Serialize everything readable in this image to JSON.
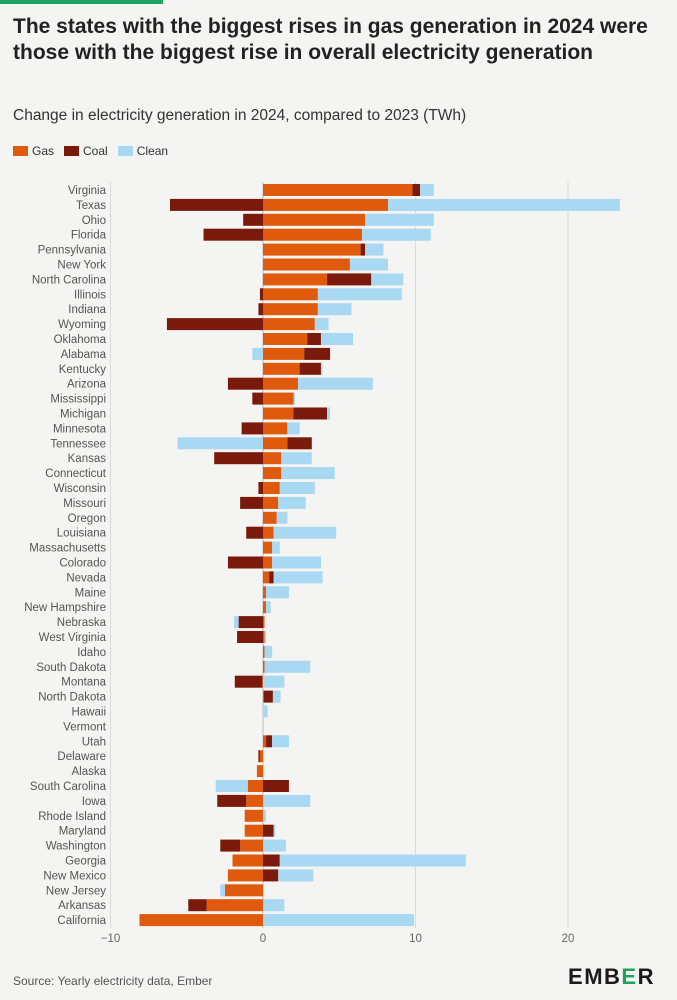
{
  "header": {
    "title": "The states with the biggest rises in gas generation in 2024 were those with the biggest rise in overall electricity generation",
    "subtitle": "Change in electricity generation in 2024, compared to 2023 (TWh)"
  },
  "legend": [
    {
      "label": "Gas",
      "color": "#e05a0d"
    },
    {
      "label": "Coal",
      "color": "#7a1a0c"
    },
    {
      "label": "Clean",
      "color": "#a9d8f2"
    }
  ],
  "footer": {
    "source": "Source: Yearly electricity data, Ember",
    "logo_prefix": "EMB",
    "logo_mark": "E",
    "logo_suffix": "R"
  },
  "chart_data": {
    "type": "bar",
    "orientation": "horizontal",
    "stacked": true,
    "title": "The states with the biggest rises in gas generation in 2024 were those with the biggest rise in overall electricity generation",
    "subtitle": "Change in electricity generation in 2024, compared to 2023 (TWh)",
    "xlabel": "",
    "ylabel": "",
    "xlim": [
      -10,
      25
    ],
    "xticks": [
      -10,
      0,
      10,
      20
    ],
    "xtick_labels": [
      "−10",
      "0",
      "10",
      "20"
    ],
    "grid": "vertical",
    "legend_position": "top-left",
    "colors": {
      "Gas": "#e05a0d",
      "Coal": "#7a1a0c",
      "Clean": "#a9d8f2"
    },
    "categories": [
      "Virginia",
      "Texas",
      "Ohio",
      "Florida",
      "Pennsylvania",
      "New York",
      "North Carolina",
      "Illinois",
      "Indiana",
      "Wyoming",
      "Oklahoma",
      "Alabama",
      "Kentucky",
      "Arizona",
      "Mississippi",
      "Michigan",
      "Minnesota",
      "Tennessee",
      "Kansas",
      "Connecticut",
      "Wisconsin",
      "Missouri",
      "Oregon",
      "Louisiana",
      "Massachusetts",
      "Colorado",
      "Nevada",
      "Maine",
      "New Hampshire",
      "Nebraska",
      "West Virginia",
      "Idaho",
      "South Dakota",
      "Montana",
      "North Dakota",
      "Hawaii",
      "Vermont",
      "Utah",
      "Delaware",
      "Alaska",
      "South Carolina",
      "Iowa",
      "Rhode Island",
      "Maryland",
      "Washington",
      "Georgia",
      "New Mexico",
      "New Jersey",
      "Arkansas",
      "California"
    ],
    "series": [
      {
        "name": "Gas",
        "values": [
          9.8,
          8.2,
          6.7,
          6.5,
          6.4,
          5.7,
          4.2,
          3.6,
          3.6,
          3.4,
          2.9,
          2.7,
          2.4,
          2.3,
          2.0,
          2.0,
          1.6,
          1.6,
          1.2,
          1.2,
          1.1,
          1.0,
          0.9,
          0.7,
          0.6,
          0.6,
          0.4,
          0.2,
          0.2,
          0.1,
          0.1,
          0.1,
          0.1,
          -0.05,
          0.05,
          0,
          0,
          0.2,
          -0.2,
          -0.4,
          -1.0,
          -1.1,
          -1.2,
          -1.2,
          -1.5,
          -2.0,
          -2.3,
          -2.5,
          -3.7,
          -8.1
        ]
      },
      {
        "name": "Coal",
        "values": [
          0.5,
          -6.1,
          -1.3,
          -3.9,
          0.3,
          0,
          2.9,
          -0.2,
          -0.3,
          -6.3,
          0.9,
          1.7,
          1.4,
          -2.3,
          -0.7,
          2.2,
          -1.4,
          1.6,
          -3.2,
          0,
          -0.3,
          -1.5,
          0,
          -1.1,
          0,
          -2.3,
          0.3,
          0,
          0,
          -1.6,
          -1.7,
          0,
          0,
          -1.8,
          0.6,
          0,
          0,
          0.4,
          -0.1,
          0,
          1.7,
          -1.9,
          0,
          0.7,
          -1.3,
          1.1,
          1.0,
          0,
          -1.2,
          0
        ]
      },
      {
        "name": "Clean",
        "values": [
          0.9,
          15.2,
          4.5,
          4.5,
          1.2,
          2.5,
          2.1,
          5.5,
          2.2,
          0.9,
          2.1,
          -0.7,
          0.1,
          4.9,
          0.1,
          0.2,
          0.8,
          -5.6,
          2.0,
          3.5,
          2.3,
          1.8,
          0.7,
          4.1,
          0.5,
          3.2,
          3.2,
          1.5,
          0.3,
          -0.3,
          0.1,
          0.5,
          3.0,
          1.4,
          0.5,
          0.3,
          0.05,
          1.1,
          0,
          0,
          -2.1,
          3.1,
          0.2,
          0.1,
          1.5,
          12.2,
          2.3,
          -0.3,
          1.4,
          9.9
        ]
      }
    ]
  }
}
